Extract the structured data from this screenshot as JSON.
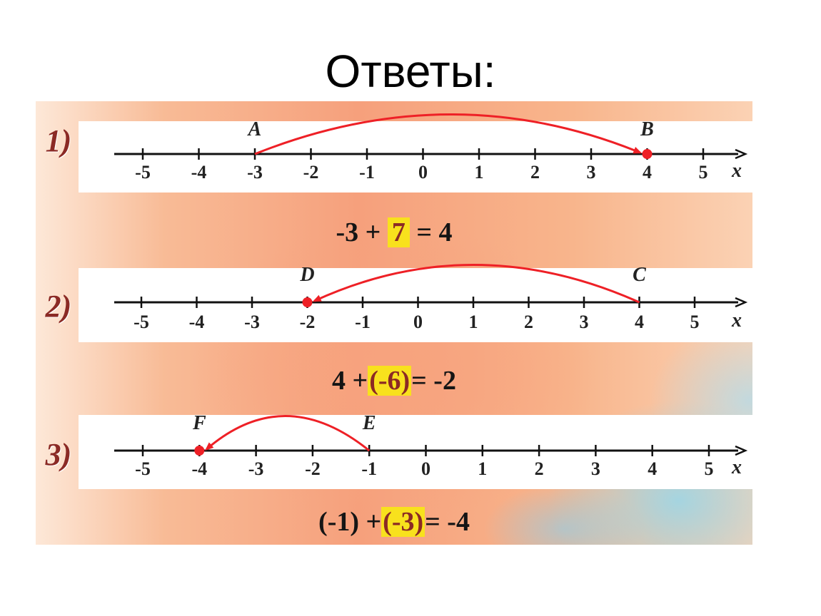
{
  "title": "Ответы:",
  "axis_symbol": "x",
  "ticks": [
    -5,
    -4,
    -3,
    -2,
    -1,
    0,
    1,
    2,
    3,
    4,
    5
  ],
  "tick_labels": [
    "-5",
    "-4",
    "-3",
    "-2",
    "-1",
    "0",
    "1",
    "2",
    "3",
    "4",
    "5"
  ],
  "colors": {
    "arrow": "#ee2026",
    "highlight": "#f8e11d",
    "task_number": "#8b2a25",
    "axis": "#111111"
  },
  "tasks": [
    {
      "number": "1)",
      "start": {
        "name": "A",
        "value": -3
      },
      "end": {
        "name": "B",
        "value": 4
      },
      "equation": {
        "left": "-3 +",
        "addend": "7",
        "right": "= 4"
      }
    },
    {
      "number": "2)",
      "start": {
        "name": "C",
        "value": 4
      },
      "end": {
        "name": "D",
        "value": -2
      },
      "equation": {
        "left": "4 +",
        "addend": "(-6)",
        "right": "= -2"
      }
    },
    {
      "number": "3)",
      "start": {
        "name": "E",
        "value": -1
      },
      "end": {
        "name": "F",
        "value": -4
      },
      "equation": {
        "left": "(-1) +",
        "addend": "(-3)",
        "right": "= -4"
      }
    }
  ]
}
